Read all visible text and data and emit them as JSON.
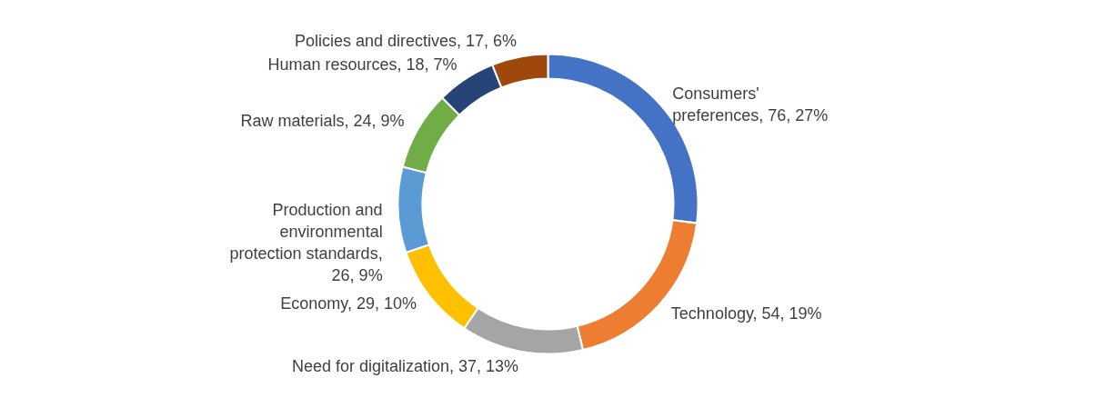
{
  "chart_data": {
    "type": "donut",
    "categories": [
      "Consumers' preferences",
      "Technology",
      "Need for digitalization",
      "Economy",
      "Production and environmental protection standards",
      "Raw materials",
      "Human resources",
      "Policies and directives"
    ],
    "values": [
      76,
      54,
      37,
      29,
      26,
      24,
      18,
      17
    ],
    "value_labels": [
      ", 76, 27%",
      ", 54, 19%",
      ", 37, 13%",
      ", 29, 10%",
      ", 26, 9%",
      ", 24, 9%",
      ", 18, 7%",
      ", 17, 6%"
    ],
    "colors": [
      "#4472c4",
      "#ed7d31",
      "#a5a5a5",
      "#ffc000",
      "#5b9bd5",
      "#70ad47",
      "#264478",
      "#9e480e"
    ],
    "legend": false
  }
}
